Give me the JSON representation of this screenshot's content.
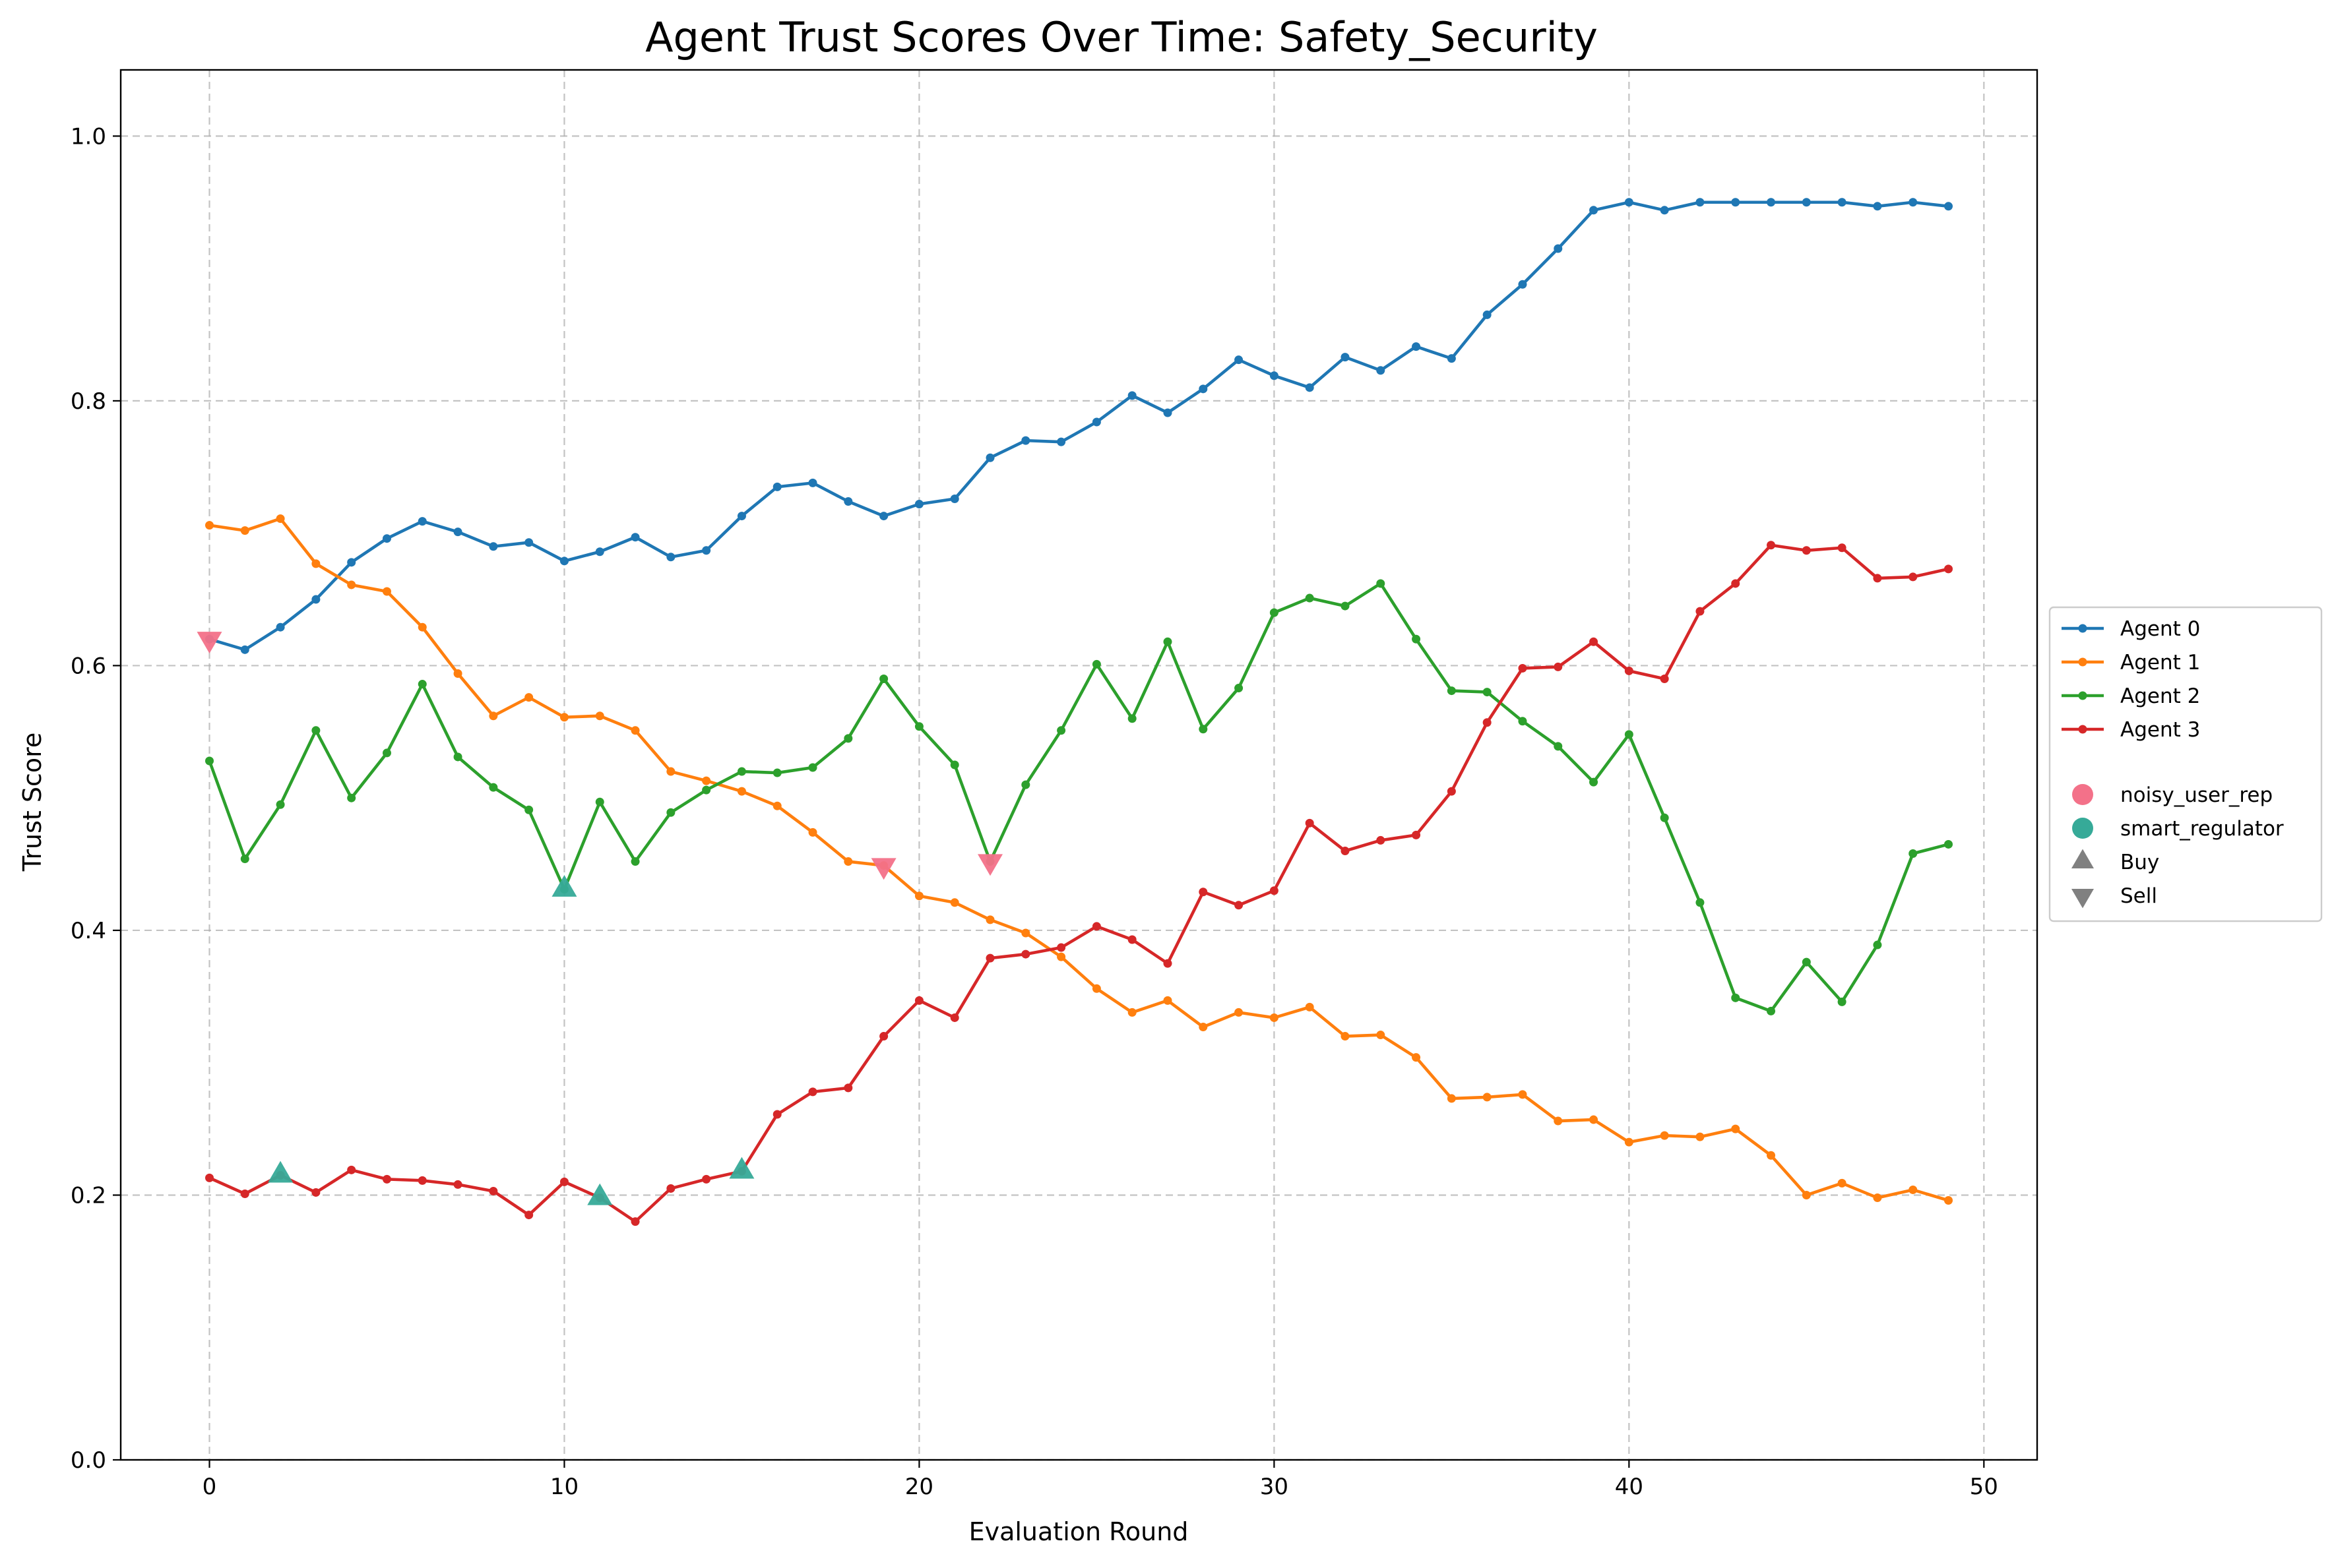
{
  "chart_data": {
    "type": "line",
    "title": "Agent Trust Scores Over Time: Safety_Security",
    "xlabel": "Evaluation Round",
    "ylabel": "Trust Score",
    "xlim": [
      -2.5,
      51.5
    ],
    "ylim": [
      0.0,
      1.05
    ],
    "xticks": [
      0,
      10,
      20,
      30,
      40,
      50
    ],
    "yticks": [
      0.0,
      0.2,
      0.4,
      0.6,
      0.8,
      1.0
    ],
    "grid": true,
    "legend_position": "center-right outside",
    "x": [
      0,
      1,
      2,
      3,
      4,
      5,
      6,
      7,
      8,
      9,
      10,
      11,
      12,
      13,
      14,
      15,
      16,
      17,
      18,
      19,
      20,
      21,
      22,
      23,
      24,
      25,
      26,
      27,
      28,
      29,
      30,
      31,
      32,
      33,
      34,
      35,
      36,
      37,
      38,
      39,
      40,
      41,
      42,
      43,
      44,
      45,
      46,
      47,
      48,
      49
    ],
    "series": [
      {
        "name": "Agent 0",
        "color": "#1f77b4",
        "values": [
          0.62,
          0.612,
          0.629,
          0.65,
          0.678,
          0.696,
          0.709,
          0.701,
          0.69,
          0.693,
          0.679,
          0.686,
          0.697,
          0.682,
          0.687,
          0.713,
          0.735,
          0.738,
          0.724,
          0.713,
          0.722,
          0.726,
          0.757,
          0.77,
          0.769,
          0.784,
          0.804,
          0.791,
          0.809,
          0.831,
          0.819,
          0.81,
          0.833,
          0.823,
          0.841,
          0.832,
          0.865,
          0.888,
          0.915,
          0.944,
          0.95,
          0.944,
          0.95,
          0.95,
          0.95,
          0.95,
          0.95,
          0.947,
          0.95,
          0.947
        ]
      },
      {
        "name": "Agent 1",
        "color": "#ff7f0e",
        "values": [
          0.706,
          0.702,
          0.711,
          0.677,
          0.661,
          0.656,
          0.629,
          0.594,
          0.562,
          0.576,
          0.561,
          0.562,
          0.551,
          0.52,
          0.513,
          0.505,
          0.494,
          0.474,
          0.452,
          0.449,
          0.426,
          0.421,
          0.408,
          0.398,
          0.38,
          0.356,
          0.338,
          0.347,
          0.327,
          0.338,
          0.334,
          0.342,
          0.32,
          0.321,
          0.304,
          0.273,
          0.274,
          0.276,
          0.256,
          0.257,
          0.24,
          0.245,
          0.244,
          0.25,
          0.23,
          0.2,
          0.209,
          0.198,
          0.204,
          0.196
        ]
      },
      {
        "name": "Agent 2",
        "color": "#2ca02c",
        "values": [
          0.528,
          0.454,
          0.495,
          0.551,
          0.5,
          0.534,
          0.586,
          0.531,
          0.508,
          0.491,
          0.431,
          0.497,
          0.452,
          0.489,
          0.506,
          0.52,
          0.519,
          0.523,
          0.545,
          0.59,
          0.554,
          0.525,
          0.452,
          0.51,
          0.551,
          0.601,
          0.56,
          0.618,
          0.552,
          0.583,
          0.64,
          0.651,
          0.645,
          0.662,
          0.62,
          0.581,
          0.58,
          0.558,
          0.539,
          0.512,
          0.548,
          0.485,
          0.421,
          0.349,
          0.339,
          0.376,
          0.346,
          0.389,
          0.458,
          0.465
        ]
      },
      {
        "name": "Agent 3",
        "color": "#d62728",
        "values": [
          0.213,
          0.201,
          0.215,
          0.202,
          0.219,
          0.212,
          0.211,
          0.208,
          0.203,
          0.185,
          0.21,
          0.198,
          0.18,
          0.205,
          0.212,
          0.218,
          0.261,
          0.278,
          0.281,
          0.32,
          0.347,
          0.334,
          0.379,
          0.382,
          0.387,
          0.403,
          0.393,
          0.375,
          0.429,
          0.419,
          0.43,
          0.481,
          0.46,
          0.468,
          0.472,
          0.505,
          0.557,
          0.598,
          0.599,
          0.618,
          0.596,
          0.59,
          0.641,
          0.662,
          0.691,
          0.687,
          0.689,
          0.666,
          0.667,
          0.673
        ]
      }
    ],
    "trade_markers": [
      {
        "agent": "noisy_user_rep",
        "action": "Sell",
        "x": 0,
        "y": 0.62
      },
      {
        "agent": "noisy_user_rep",
        "action": "Sell",
        "x": 19,
        "y": 0.449
      },
      {
        "agent": "noisy_user_rep",
        "action": "Sell",
        "x": 22,
        "y": 0.452
      },
      {
        "agent": "smart_regulator",
        "action": "Buy",
        "x": 2,
        "y": 0.215
      },
      {
        "agent": "smart_regulator",
        "action": "Buy",
        "x": 10,
        "y": 0.431
      },
      {
        "agent": "smart_regulator",
        "action": "Buy",
        "x": 11,
        "y": 0.198
      },
      {
        "agent": "smart_regulator",
        "action": "Buy",
        "x": 15,
        "y": 0.218
      }
    ],
    "marker_colors": {
      "noisy_user_rep": "#f37189",
      "smart_regulator": "#36aa98",
      "Buy": "#808080",
      "Sell": "#808080"
    },
    "legend_series": [
      "Agent 0",
      "Agent 1",
      "Agent 2",
      "Agent 3"
    ],
    "legend_markers": [
      {
        "label": "noisy_user_rep",
        "shape": "circle",
        "color": "#f37189"
      },
      {
        "label": "smart_regulator",
        "shape": "circle",
        "color": "#36aa98"
      },
      {
        "label": "Buy",
        "shape": "triangle-up",
        "color": "#808080"
      },
      {
        "label": "Sell",
        "shape": "triangle-down",
        "color": "#808080"
      }
    ]
  }
}
